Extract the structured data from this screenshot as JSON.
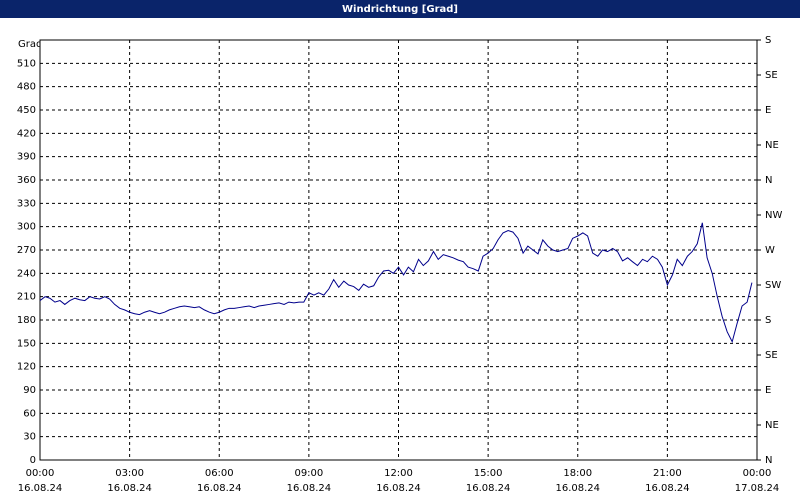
{
  "chart_data": {
    "type": "line",
    "title": "Windrichtung [Grad]",
    "ylabel": "Grad",
    "xlim": [
      0,
      24
    ],
    "xticks": [
      {
        "value": 0,
        "label": "00:00",
        "date": "16.08.24"
      },
      {
        "value": 3,
        "label": "03:00",
        "date": "16.08.24"
      },
      {
        "value": 6,
        "label": "06:00",
        "date": "16.08.24"
      },
      {
        "value": 9,
        "label": "09:00",
        "date": "16.08.24"
      },
      {
        "value": 12,
        "label": "12:00",
        "date": "16.08.24"
      },
      {
        "value": 15,
        "label": "15:00",
        "date": "16.08.24"
      },
      {
        "value": 18,
        "label": "18:00",
        "date": "16.08.24"
      },
      {
        "value": 21,
        "label": "21:00",
        "date": "16.08.24"
      },
      {
        "value": 24,
        "label": "00:00",
        "date": "17.08.24"
      }
    ],
    "ylim": [
      0,
      540
    ],
    "yticks": [
      0,
      30,
      60,
      90,
      120,
      150,
      180,
      210,
      240,
      270,
      300,
      330,
      360,
      390,
      420,
      450,
      480,
      510
    ],
    "y2lim": [
      0,
      540
    ],
    "y2ticks": [
      {
        "value": 0,
        "label": "N"
      },
      {
        "value": 45,
        "label": "NE"
      },
      {
        "value": 90,
        "label": "E"
      },
      {
        "value": 135,
        "label": "SE"
      },
      {
        "value": 180,
        "label": "S"
      },
      {
        "value": 225,
        "label": "SW"
      },
      {
        "value": 270,
        "label": "W"
      },
      {
        "value": 315,
        "label": "NW"
      },
      {
        "value": 360,
        "label": "N"
      },
      {
        "value": 405,
        "label": "NE"
      },
      {
        "value": 450,
        "label": "E"
      },
      {
        "value": 495,
        "label": "SE"
      },
      {
        "value": 540,
        "label": "S"
      }
    ],
    "grid": true,
    "x": [
      0,
      0.17,
      0.33,
      0.5,
      0.67,
      0.83,
      1,
      1.17,
      1.33,
      1.5,
      1.67,
      1.83,
      2,
      2.17,
      2.33,
      2.5,
      2.67,
      2.83,
      3,
      3.17,
      3.33,
      3.5,
      3.67,
      3.83,
      4,
      4.17,
      4.33,
      4.5,
      4.67,
      4.83,
      5,
      5.17,
      5.33,
      5.5,
      5.67,
      5.83,
      6,
      6.17,
      6.33,
      6.5,
      6.67,
      6.83,
      7,
      7.17,
      7.33,
      7.5,
      7.67,
      7.83,
      8,
      8.17,
      8.33,
      8.5,
      8.67,
      8.83,
      9,
      9.17,
      9.33,
      9.5,
      9.67,
      9.83,
      10,
      10.17,
      10.33,
      10.5,
      10.67,
      10.83,
      11,
      11.17,
      11.33,
      11.5,
      11.67,
      11.83,
      12,
      12.17,
      12.33,
      12.5,
      12.67,
      12.83,
      13,
      13.17,
      13.33,
      13.5,
      13.67,
      13.83,
      14,
      14.17,
      14.33,
      14.5,
      14.67,
      14.83,
      15,
      15.17,
      15.33,
      15.5,
      15.67,
      15.83,
      16,
      16.17,
      16.33,
      16.5,
      16.67,
      16.83,
      17,
      17.17,
      17.33,
      17.5,
      17.67,
      17.83,
      18,
      18.17,
      18.33,
      18.5,
      18.67,
      18.83,
      19,
      19.17,
      19.33,
      19.5,
      19.67,
      19.83,
      20,
      20.17,
      20.33,
      20.5,
      20.67,
      20.83,
      21,
      21.17,
      21.33,
      21.5,
      21.67,
      21.83,
      22,
      22.17,
      22.33,
      22.5,
      22.67,
      22.83,
      23,
      23.17,
      23.33,
      23.5,
      23.67,
      23.83
    ],
    "series": [
      {
        "name": "Windrichtung",
        "color": "#00008b",
        "values": [
          205,
          210,
          208,
          203,
          205,
          200,
          205,
          208,
          206,
          205,
          210,
          208,
          207,
          210,
          207,
          200,
          195,
          193,
          190,
          188,
          187,
          190,
          192,
          190,
          188,
          190,
          193,
          195,
          197,
          198,
          197,
          196,
          197,
          193,
          190,
          188,
          190,
          193,
          195,
          195,
          196,
          197,
          198,
          196,
          198,
          199,
          200,
          201,
          202,
          200,
          203,
          202,
          203,
          203,
          215,
          212,
          215,
          212,
          220,
          232,
          222,
          230,
          225,
          223,
          218,
          226,
          222,
          224,
          235,
          243,
          244,
          240,
          248,
          238,
          248,
          242,
          258,
          250,
          256,
          268,
          258,
          264,
          262,
          260,
          257,
          255,
          248,
          246,
          243,
          262,
          266,
          272,
          283,
          292,
          295,
          293,
          285,
          266,
          275,
          270,
          265,
          283,
          275,
          270,
          268,
          270,
          272,
          285,
          288,
          292,
          288,
          266,
          262,
          270,
          268,
          272,
          268,
          256,
          260,
          255,
          250,
          258,
          255,
          262,
          258,
          248,
          225,
          238,
          258,
          250,
          262,
          268,
          278,
          305,
          260,
          240,
          210,
          185,
          165,
          152,
          175,
          198,
          203,
          228
        ]
      }
    ]
  }
}
